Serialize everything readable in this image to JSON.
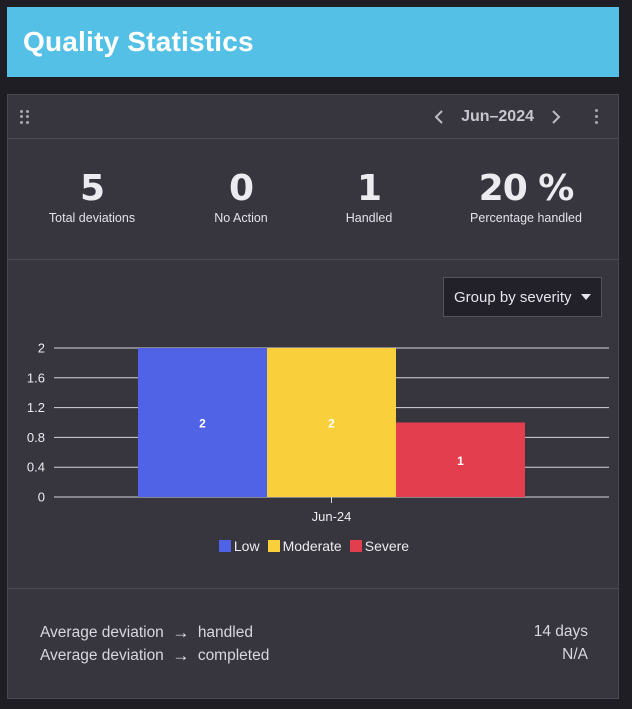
{
  "header": {
    "title": "Quality Statistics"
  },
  "card": {
    "month": "Jun–2024",
    "stats": [
      {
        "value": "5",
        "label": "Total deviations"
      },
      {
        "value": "0",
        "label": "No Action"
      },
      {
        "value": "1",
        "label": "Handled"
      },
      {
        "value": "20 %",
        "label": "Percentage handled"
      }
    ],
    "group_select": {
      "label": "Group by severity"
    },
    "footer": [
      {
        "left": "Average deviation",
        "right": "handled",
        "value": "14 days"
      },
      {
        "left": "Average deviation",
        "right": "completed",
        "value": "N/A"
      }
    ]
  },
  "chart_data": {
    "type": "bar",
    "categories": [
      "Jun-24"
    ],
    "series": [
      {
        "name": "Low",
        "values": [
          2
        ],
        "color": "#5062e6"
      },
      {
        "name": "Moderate",
        "values": [
          2
        ],
        "color": "#f9cf3b"
      },
      {
        "name": "Severe",
        "values": [
          1
        ],
        "color": "#e23e4e"
      }
    ],
    "ylim": [
      0,
      2
    ],
    "yticks": [
      "0",
      "0.4",
      "0.8",
      "1.2",
      "1.6",
      "2"
    ],
    "legend": "bottom",
    "grid": true
  },
  "icons": {
    "drag": "drag-handle-icon",
    "prev": "chevron-left-icon",
    "next": "chevron-right-icon",
    "menu": "more-vertical-icon",
    "dropdown": "caret-down-icon",
    "arrow": "arrow-right-icon"
  }
}
